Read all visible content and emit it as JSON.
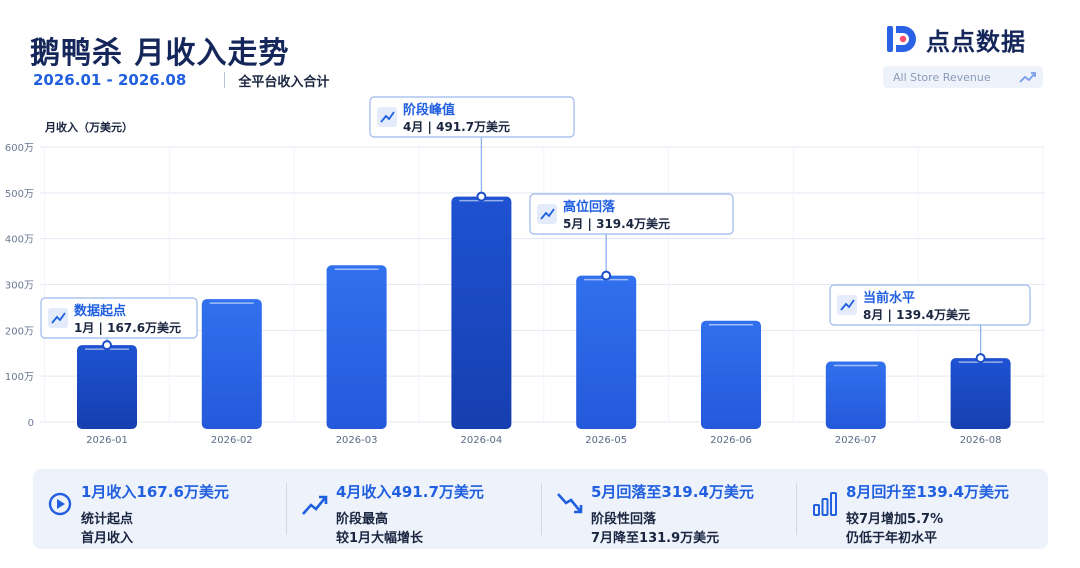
{
  "header": {
    "title": "鹅鸭杀 月收入走势",
    "date_range": "2026.01 - 2026.08",
    "subtitle": "全平台收入合计",
    "logo_text": "点点数据",
    "store_label": "All Store Revenue"
  },
  "chart_data": {
    "type": "bar",
    "ylabel": "月收入（万美元）",
    "ylim": [
      0,
      600
    ],
    "yticks": [
      0,
      100,
      200,
      300,
      400,
      500,
      600
    ],
    "ytick_labels": [
      "0",
      "100万",
      "200万",
      "300万",
      "400万",
      "500万",
      "600万"
    ],
    "categories": [
      "2026-01",
      "2026-02",
      "2026-03",
      "2026-04",
      "2026-05",
      "2026-06",
      "2026-07",
      "2026-08"
    ],
    "values": [
      167.6,
      268,
      342,
      491.7,
      319.4,
      221,
      131.9,
      139.4
    ],
    "highlight_indices": [
      0,
      3,
      7
    ],
    "colors": {
      "bar": "#2a62e6",
      "bar_highlight": "#1a4cc8",
      "grid": "#e3e9f3"
    },
    "grid": true,
    "annotations": [
      {
        "index": 0,
        "title": "数据起点",
        "detail": "1月 | 167.6万美元"
      },
      {
        "index": 3,
        "title": "阶段峰值",
        "detail": "4月 | 491.7万美元"
      },
      {
        "index": 4,
        "title": "高位回落",
        "detail": "5月 | 319.4万美元"
      },
      {
        "index": 7,
        "title": "当前水平",
        "detail": "8月 | 139.4万美元"
      }
    ]
  },
  "stats": [
    {
      "icon": "play-circle-icon",
      "title": "1月收入167.6万美元",
      "line1": "统计起点",
      "line2": "首月收入"
    },
    {
      "icon": "trend-up-icon",
      "title": "4月收入491.7万美元",
      "line1": "阶段最高",
      "line2": "较1月大幅增长"
    },
    {
      "icon": "trend-down-icon",
      "title": "5月回落至319.4万美元",
      "line1": "阶段性回落",
      "line2": "7月降至131.9万美元"
    },
    {
      "icon": "bar-chart-icon",
      "title": "8月回升至139.4万美元",
      "line1": "较7月增加5.7%",
      "line2": "仍低于年初水平"
    }
  ]
}
